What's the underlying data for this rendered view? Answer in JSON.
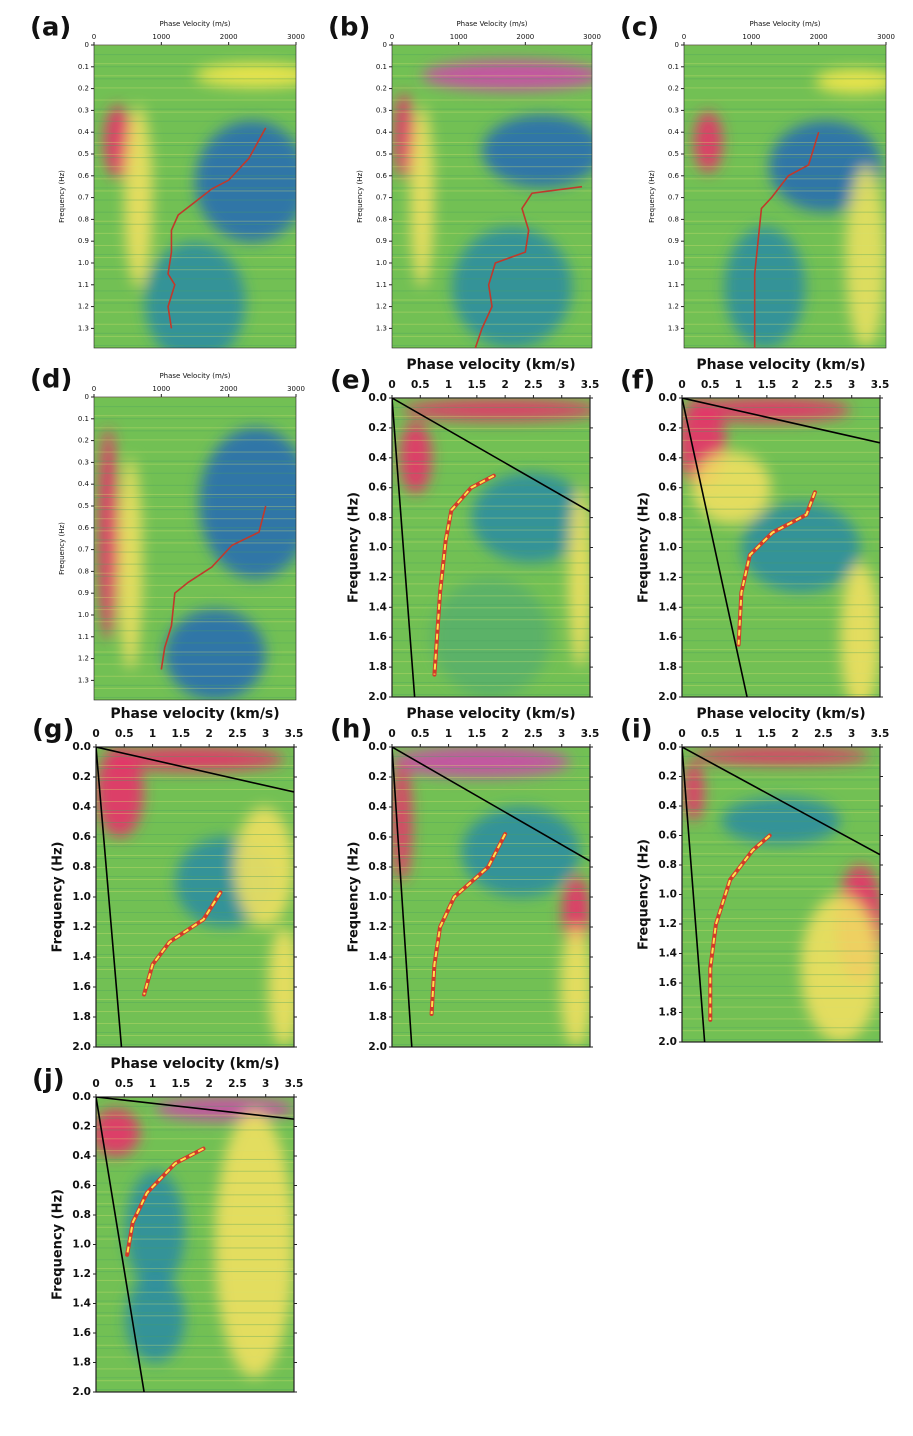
{
  "chart_data": [
    {
      "type": "line",
      "label": "(a)",
      "title": "Phase Velocity (m/s)",
      "ylabel": "Frequency (Hz)",
      "y_inverted": true,
      "xlim": [
        0,
        3000
      ],
      "xticks": [
        0,
        1000,
        2000,
        3000
      ],
      "ylim": [
        0,
        1.39
      ],
      "yticks": [
        0,
        0.1,
        0.2,
        0.3,
        0.4,
        0.5,
        0.6,
        0.7,
        0.8,
        0.9,
        {
          "value": 1,
          "label": "1.0"
        },
        1.1,
        1.2,
        1.3
      ],
      "series": [
        {
          "color": "#c0392b",
          "dashed": false,
          "x": [
            2550,
            2300,
            2000,
            1750,
            1500,
            1250,
            1150,
            1150,
            1100,
            1200,
            1100,
            1150
          ],
          "values": [
            0.38,
            0.52,
            0.62,
            0.66,
            0.72,
            0.78,
            0.85,
            0.95,
            1.05,
            1.1,
            1.2,
            1.3
          ]
        }
      ]
    },
    {
      "type": "line",
      "label": "(b)",
      "title": "Phase Velocity (m/s)",
      "ylabel": "Frequency (Hz)",
      "y_inverted": true,
      "xlim": [
        0,
        3000
      ],
      "xticks": [
        0,
        1000,
        2000,
        3000
      ],
      "ylim": [
        0,
        1.39
      ],
      "yticks": [
        0,
        0.1,
        0.2,
        0.3,
        0.4,
        0.5,
        0.6,
        0.7,
        0.8,
        0.9,
        {
          "value": 1,
          "label": "1.0"
        },
        1.1,
        1.2,
        1.3
      ],
      "series": [
        {
          "color": "#c0392b",
          "dashed": false,
          "x": [
            2850,
            2100,
            1950,
            2050,
            2000,
            1550,
            1450,
            1500,
            1350,
            1250
          ],
          "values": [
            0.65,
            0.68,
            0.75,
            0.85,
            0.95,
            1.0,
            1.1,
            1.2,
            1.3,
            1.39
          ]
        }
      ]
    },
    {
      "type": "line",
      "label": "(c)",
      "title": "Phase Velocity (m/s)",
      "ylabel": "Frequency (Hz)",
      "y_inverted": true,
      "xlim": [
        0,
        3000
      ],
      "xticks": [
        0,
        1000,
        2000,
        3000
      ],
      "ylim": [
        0,
        1.39
      ],
      "yticks": [
        0,
        0.1,
        0.2,
        0.3,
        0.4,
        0.5,
        0.6,
        0.7,
        0.8,
        0.9,
        {
          "value": 1,
          "label": "1.0"
        },
        1.1,
        1.2,
        1.3
      ],
      "series": [
        {
          "color": "#c0392b",
          "dashed": false,
          "x": [
            2000,
            1850,
            1550,
            1300,
            1150,
            1100,
            1050,
            1050,
            1050
          ],
          "values": [
            0.4,
            0.55,
            0.6,
            0.7,
            0.75,
            0.9,
            1.05,
            1.2,
            1.39
          ]
        }
      ]
    },
    {
      "type": "line",
      "label": "(d)",
      "title": "Phase Velocity (m/s)",
      "ylabel": "Frequency (Hz)",
      "y_inverted": true,
      "xlim": [
        0,
        3000
      ],
      "xticks": [
        0,
        1000,
        2000,
        3000
      ],
      "ylim": [
        0,
        1.39
      ],
      "yticks": [
        0,
        0.1,
        0.2,
        0.3,
        0.4,
        0.5,
        0.6,
        0.7,
        0.8,
        0.9,
        {
          "value": 1,
          "label": "1.0"
        },
        1.1,
        1.2,
        1.3
      ],
      "series": [
        {
          "color": "#c0392b",
          "dashed": false,
          "x": [
            2550,
            2450,
            2050,
            1750,
            1400,
            1200,
            1150,
            1050,
            1000
          ],
          "values": [
            0.5,
            0.62,
            0.68,
            0.78,
            0.85,
            0.9,
            1.05,
            1.15,
            1.25
          ]
        }
      ]
    },
    {
      "type": "line",
      "label": "(e)",
      "title": "Phase velocity (km/s)",
      "ylabel": "Frequency (Hz)",
      "y_inverted": true,
      "xlim": [
        0,
        3.5
      ],
      "xticks": [
        0,
        0.5,
        1,
        1.5,
        2,
        2.5,
        3,
        3.5
      ],
      "ylim": [
        0,
        2
      ],
      "yticks": [
        {
          "value": 0,
          "label": "0.0"
        },
        0.2,
        0.4,
        0.6,
        0.8,
        {
          "value": 1,
          "label": "1.0"
        },
        1.2,
        1.4,
        1.6,
        1.8,
        {
          "value": 2,
          "label": "2.0"
        }
      ],
      "series": [
        {
          "color": "#000000",
          "dashed": false,
          "x": [
            0,
            3.5
          ],
          "values": [
            0,
            0.76
          ]
        },
        {
          "color": "#000000",
          "dashed": false,
          "x": [
            0,
            0.4
          ],
          "values": [
            0,
            2
          ]
        },
        {
          "color": "#ffe14d",
          "dashed": true,
          "x": [
            1.8,
            1.4,
            1.05,
            0.95,
            0.85,
            0.75
          ],
          "values": [
            0.52,
            0.6,
            0.75,
            0.95,
            1.3,
            1.85
          ]
        }
      ]
    },
    {
      "type": "line",
      "label": "(f)",
      "title": "Phase velocity (km/s)",
      "ylabel": "Frequency (Hz)",
      "y_inverted": true,
      "xlim": [
        0,
        3.5
      ],
      "xticks": [
        0,
        0.5,
        1,
        1.5,
        2,
        2.5,
        3,
        3.5
      ],
      "ylim": [
        0,
        2
      ],
      "yticks": [
        {
          "value": 0,
          "label": "0.0"
        },
        0.2,
        0.4,
        0.6,
        0.8,
        {
          "value": 1,
          "label": "1.0"
        },
        1.2,
        1.4,
        1.6,
        1.8,
        {
          "value": 2,
          "label": "2.0"
        }
      ],
      "series": [
        {
          "color": "#000000",
          "dashed": false,
          "x": [
            0,
            3.5
          ],
          "values": [
            0,
            0.3
          ]
        },
        {
          "color": "#000000",
          "dashed": false,
          "x": [
            0,
            1.15
          ],
          "values": [
            0,
            2
          ]
        },
        {
          "color": "#ffe14d",
          "dashed": true,
          "x": [
            2.35,
            2.2,
            1.6,
            1.2,
            1.05,
            1.0
          ],
          "values": [
            0.63,
            0.78,
            0.9,
            1.05,
            1.3,
            1.65
          ]
        }
      ]
    },
    {
      "type": "line",
      "label": "(g)",
      "title": "Phase velocity (km/s)",
      "ylabel": "Frequency (Hz)",
      "y_inverted": true,
      "xlim": [
        0,
        3.5
      ],
      "xticks": [
        0,
        0.5,
        1,
        1.5,
        2,
        2.5,
        3,
        3.5
      ],
      "ylim": [
        0,
        2
      ],
      "yticks": [
        {
          "value": 0,
          "label": "0.0"
        },
        0.2,
        0.4,
        0.6,
        0.8,
        {
          "value": 1,
          "label": "1.0"
        },
        1.2,
        1.4,
        1.6,
        1.8,
        {
          "value": 2,
          "label": "2.0"
        }
      ],
      "series": [
        {
          "color": "#000000",
          "dashed": false,
          "x": [
            0,
            3.5
          ],
          "values": [
            0,
            0.3
          ]
        },
        {
          "color": "#000000",
          "dashed": false,
          "x": [
            0,
            0.45
          ],
          "values": [
            0,
            2
          ]
        },
        {
          "color": "#ffe14d",
          "dashed": true,
          "x": [
            2.2,
            1.9,
            1.3,
            1.0,
            0.85
          ],
          "values": [
            0.97,
            1.15,
            1.3,
            1.45,
            1.65
          ]
        }
      ]
    },
    {
      "type": "line",
      "label": "(h)",
      "title": "Phase velocity (km/s)",
      "ylabel": "Frequency (Hz)",
      "y_inverted": true,
      "xlim": [
        0,
        3.5
      ],
      "xticks": [
        0,
        0.5,
        1,
        1.5,
        2,
        2.5,
        3,
        3.5
      ],
      "ylim": [
        0,
        2
      ],
      "yticks": [
        {
          "value": 0,
          "label": "0.0"
        },
        0.2,
        0.4,
        0.6,
        0.8,
        {
          "value": 1,
          "label": "1.0"
        },
        1.2,
        1.4,
        1.6,
        1.8,
        {
          "value": 2,
          "label": "2.0"
        }
      ],
      "series": [
        {
          "color": "#000000",
          "dashed": false,
          "x": [
            0,
            3.5
          ],
          "values": [
            0,
            0.76
          ]
        },
        {
          "color": "#000000",
          "dashed": false,
          "x": [
            0,
            0.35
          ],
          "values": [
            0,
            2
          ]
        },
        {
          "color": "#ffe14d",
          "dashed": true,
          "x": [
            2.0,
            1.7,
            1.1,
            0.85,
            0.75,
            0.7
          ],
          "values": [
            0.58,
            0.8,
            1.0,
            1.2,
            1.45,
            1.78
          ]
        }
      ]
    },
    {
      "type": "line",
      "label": "(i)",
      "title": "Phase velocity (km/s)",
      "ylabel": "Frequency (Hz)",
      "y_inverted": true,
      "xlim": [
        0,
        3.5
      ],
      "xticks": [
        0,
        0.5,
        1,
        1.5,
        2,
        2.5,
        3,
        3.5
      ],
      "ylim": [
        0,
        2
      ],
      "yticks": [
        {
          "value": 0,
          "label": "0.0"
        },
        0.2,
        0.4,
        0.6,
        0.8,
        {
          "value": 1,
          "label": "1.0"
        },
        1.2,
        1.4,
        1.6,
        1.8,
        {
          "value": 2,
          "label": "2.0"
        }
      ],
      "series": [
        {
          "color": "#000000",
          "dashed": false,
          "x": [
            0,
            3.5
          ],
          "values": [
            0,
            0.73
          ]
        },
        {
          "color": "#000000",
          "dashed": false,
          "x": [
            0,
            0.4
          ],
          "values": [
            0,
            2
          ]
        },
        {
          "color": "#ffe14d",
          "dashed": true,
          "x": [
            1.55,
            1.25,
            0.85,
            0.6,
            0.5,
            0.5
          ],
          "values": [
            0.6,
            0.7,
            0.9,
            1.2,
            1.5,
            1.85
          ]
        }
      ]
    },
    {
      "type": "line",
      "label": "(j)",
      "title": "Phase velocity (km/s)",
      "ylabel": "Frequency (Hz)",
      "y_inverted": true,
      "xlim": [
        0,
        3.5
      ],
      "xticks": [
        0,
        0.5,
        1,
        1.5,
        2,
        2.5,
        3,
        3.5
      ],
      "ylim": [
        0,
        2
      ],
      "yticks": [
        {
          "value": 0,
          "label": "0.0"
        },
        0.2,
        0.4,
        0.6,
        0.8,
        {
          "value": 1,
          "label": "1.0"
        },
        1.2,
        1.4,
        1.6,
        1.8,
        {
          "value": 2,
          "label": "2.0"
        }
      ],
      "series": [
        {
          "color": "#000000",
          "dashed": false,
          "x": [
            0,
            3.5
          ],
          "values": [
            0,
            0.15
          ]
        },
        {
          "color": "#000000",
          "dashed": false,
          "x": [
            0,
            0.85
          ],
          "values": [
            0,
            2
          ]
        },
        {
          "color": "#ffe14d",
          "dashed": true,
          "x": [
            1.9,
            1.4,
            0.9,
            0.65,
            0.55
          ],
          "values": [
            0.35,
            0.45,
            0.65,
            0.85,
            1.07
          ]
        }
      ]
    }
  ]
}
